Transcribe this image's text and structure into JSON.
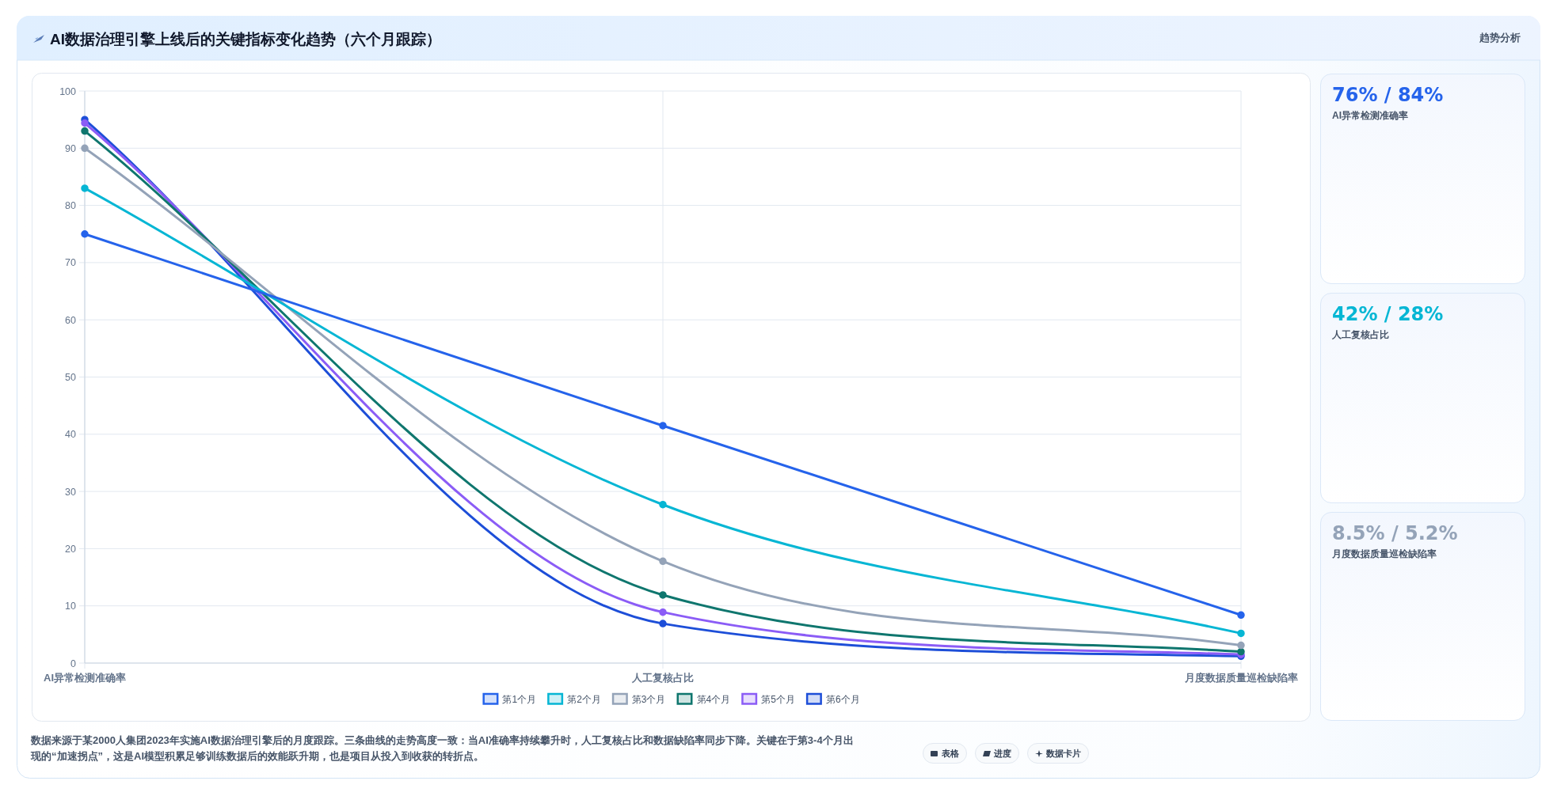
{
  "chart_data": [
    {
      "type": "line",
      "title": "AI数据治理引擎上线后的关键指标变化趋势（六个月跟踪）",
      "categories": [
        "AI异常检测准确率",
        "人工复核占比",
        "月度数据质量巡检缺陷率"
      ],
      "series": [
        {
          "name": "第1个月",
          "color": "#2563eb",
          "values": [
            75,
            41.5,
            8.4
          ]
        },
        {
          "name": "第2个月",
          "color": "#06b6d4",
          "values": [
            83,
            27.7,
            5.2
          ]
        },
        {
          "name": "第3个月",
          "color": "#94a3b8",
          "values": [
            90,
            17.8,
            3.1
          ]
        },
        {
          "name": "第4个月",
          "color": "#0f766e",
          "values": [
            93,
            11.9,
            2
          ]
        },
        {
          "name": "第5个月",
          "color": "#8b5cf6",
          "values": [
            94.4,
            8.9,
            1.5
          ]
        },
        {
          "name": "第6个月",
          "color": "#1d4ed8",
          "values": [
            95,
            6.9,
            1.2
          ]
        }
      ],
      "ylim": [
        0,
        100
      ],
      "yticks": [
        0,
        10,
        20,
        30,
        40,
        50,
        60,
        70,
        80,
        90,
        100
      ],
      "grid": true,
      "legend": "bottom",
      "marker": "circle",
      "line_style": "solid",
      "annotations": [
        "趋势分析",
        "数据来源于某2000人集团2023年实施AI数据治理引擎后的月度跟踪。三条曲线的走势高度一致：当AI准确率持续攀升时，人工复核占比和数据缺陷率同步下降。关键在于第3-4个月出现的“加速拐点”，这是AI模型积累足够训练数据后的效能跃升期，也是项目从投入到收获的转折点。",
        "表格",
        "进度",
        "数据卡片"
      ]
    },
    {
      "type": "other",
      "title": "76% / 84%",
      "subtitle": "AI异常检测准确率",
      "color": "#2563eb"
    },
    {
      "type": "other",
      "title": "42% / 28%",
      "subtitle": "人工复核占比",
      "color": "#06b6d4"
    },
    {
      "type": "other",
      "title": "8.5% / 5.2%",
      "subtitle": "月度数据质量巡检缺陷率",
      "color": "#94a3b8"
    }
  ]
}
